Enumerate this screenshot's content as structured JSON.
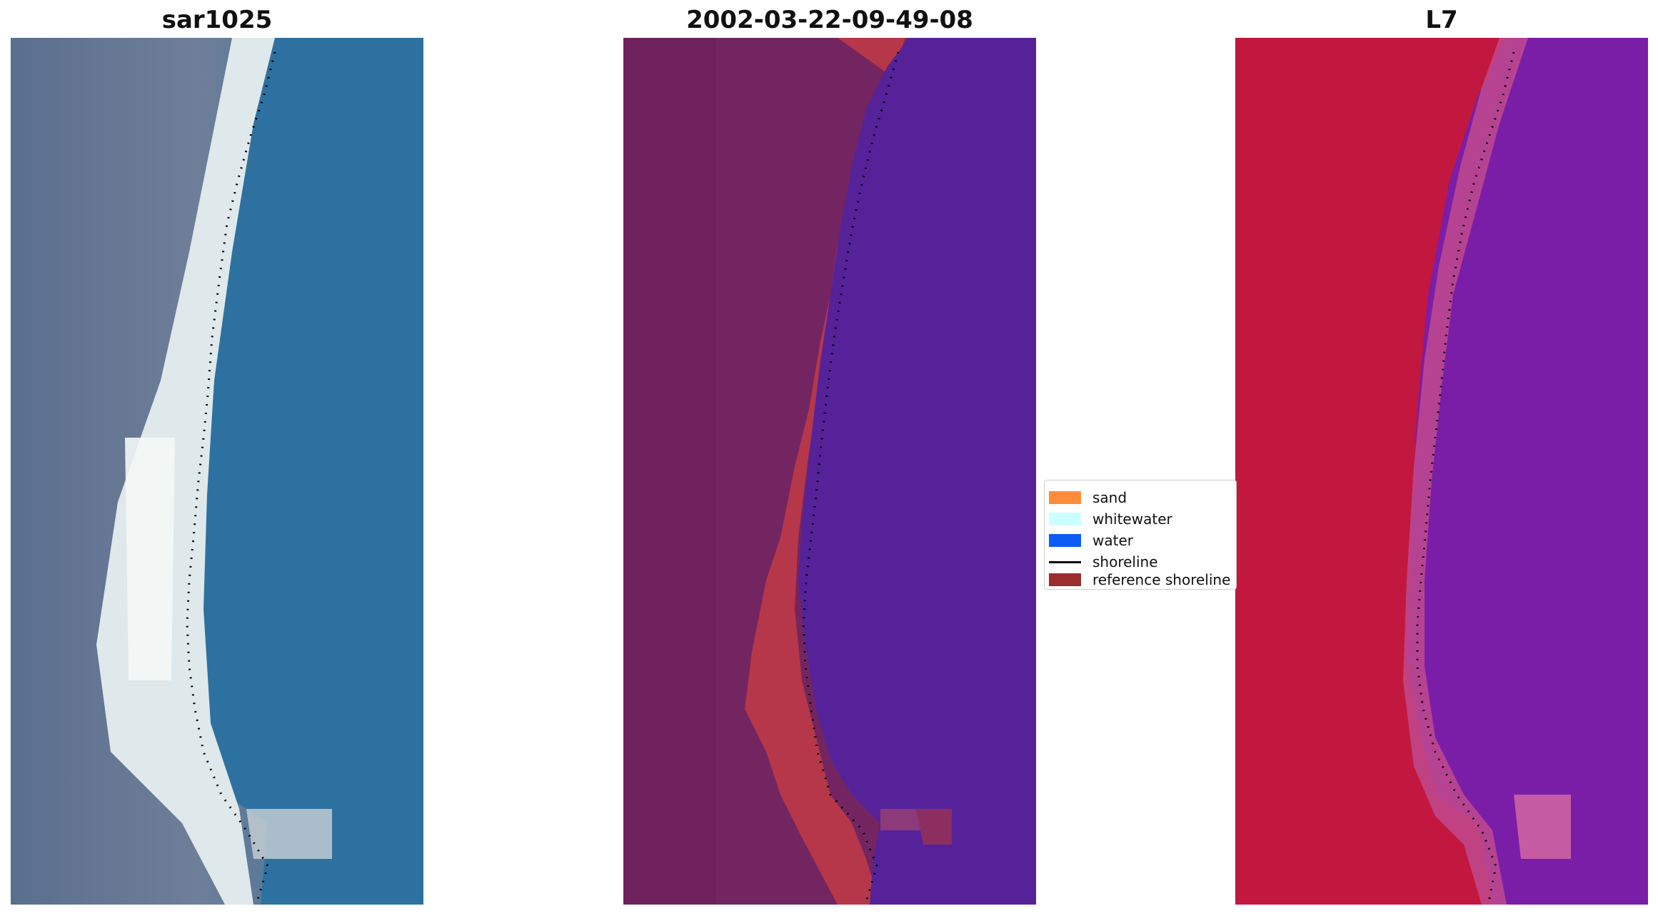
{
  "panels": [
    {
      "title": "sar1025"
    },
    {
      "title": "2002-03-22-09-49-08"
    },
    {
      "title": "L7"
    }
  ],
  "legend": {
    "items": [
      {
        "label": "sand",
        "color": "#ff8c3a"
      },
      {
        "label": "whitewater",
        "color": "#ccffff"
      },
      {
        "label": "water",
        "color": "#0d5cf5"
      },
      {
        "label": "shoreline",
        "color": "#000000"
      },
      {
        "label": "reference shoreline",
        "color": "#9b2d30"
      }
    ]
  },
  "colors": {
    "rgb_water": "#2f6f9e",
    "rgb_land": "#5c7294",
    "rgb_beach": "#e8eef0",
    "class_land": "#732561",
    "class_sand_ref": "#b6374a",
    "class_water": "#55229a",
    "l7_land": "#c2173f",
    "l7_water": "#7a1ea8"
  }
}
